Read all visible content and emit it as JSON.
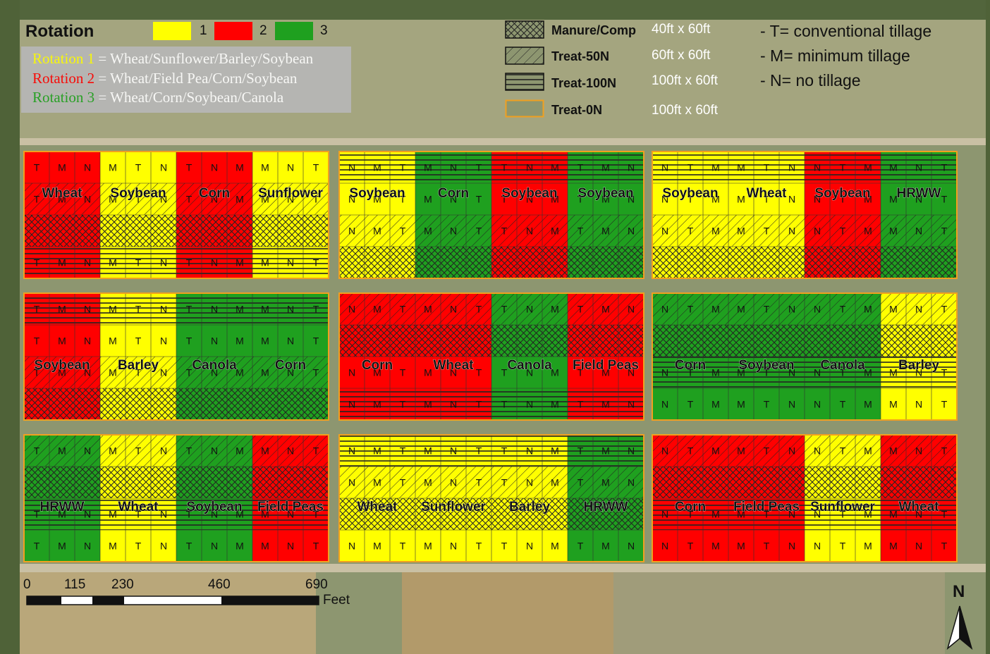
{
  "legend": {
    "title": "Rotation",
    "swatches": [
      {
        "label": "1",
        "color": "#ffff00"
      },
      {
        "label": "2",
        "color": "#ff0000"
      },
      {
        "label": "3",
        "color": "#1fa01f"
      }
    ],
    "rotations": [
      {
        "name": "Rotation 1",
        "crops": " = Wheat/Sunflower/Barley/Soybean",
        "color": "#ffff00"
      },
      {
        "name": "Rotation 2",
        "crops": " = Wheat/Field Pea/Corn/Soybean",
        "color": "#ff0000"
      },
      {
        "name": "Rotation 3",
        "crops": " = Wheat/Corn/Soybean/Canola",
        "color": "#1fa01f"
      }
    ]
  },
  "treatments": [
    {
      "label": "Manure/Comp",
      "size": "40ft x 60ft",
      "pattern": "crosshatch"
    },
    {
      "label": "Treat-50N",
      "size": "60ft x 60ft",
      "pattern": "diagonal"
    },
    {
      "label": "Treat-100N",
      "size": "100ft x 60ft",
      "pattern": "horizontal"
    },
    {
      "label": "Treat-0N",
      "size": "100ft x 60ft",
      "pattern": "none"
    }
  ],
  "tillage": [
    "- T= conventional tillage",
    "- M= minimum tillage",
    "- N= no tillage"
  ],
  "colors": {
    "1": "#ffff00",
    "2": "#ff0000",
    "3": "#1fa01f"
  },
  "blocks": [
    {
      "cols": [
        [
          "T",
          "M",
          "N"
        ],
        [
          "M",
          "T",
          "N"
        ],
        [
          "T",
          "N",
          "M"
        ],
        [
          "M",
          "N",
          "T"
        ]
      ],
      "col_rot": [
        "2",
        "1",
        "2",
        "1"
      ],
      "rows": [
        [
          "0"
        ],
        [
          "50",
          "MC"
        ],
        [
          "100"
        ]
      ],
      "crops": [
        "Wheat",
        "Soybean",
        "Corn",
        "Sunflower"
      ]
    },
    {
      "cols": [
        [
          "N",
          "M",
          "T"
        ],
        [
          "M",
          "N",
          "T"
        ],
        [
          "T",
          "N",
          "M"
        ],
        [
          "T",
          "M",
          "N"
        ]
      ],
      "col_rot": [
        "1",
        "3",
        "2",
        "3"
      ],
      "rows": [
        [
          "100"
        ],
        [
          "0"
        ],
        [
          "50",
          "MC"
        ]
      ],
      "crops": [
        "Soybean",
        "Corn",
        "Soybean",
        "Soybean"
      ]
    },
    {
      "cols": [
        [
          "N",
          "T",
          "M"
        ],
        [
          "M",
          "T",
          "N"
        ],
        [
          "N",
          "T",
          "M"
        ],
        [
          "M",
          "N",
          "T"
        ]
      ],
      "col_rot": [
        "1",
        "1",
        "2",
        "3"
      ],
      "rows": [
        [
          "100"
        ],
        [
          "0"
        ],
        [
          "50",
          "MC"
        ]
      ],
      "crops": [
        "Soybean",
        "Wheat",
        "Soybean",
        "HRWW"
      ]
    },
    {
      "cols": [
        [
          "T",
          "M",
          "N"
        ],
        [
          "M",
          "T",
          "N"
        ],
        [
          "T",
          "N",
          "M"
        ],
        [
          "M",
          "N",
          "T"
        ]
      ],
      "col_rot": [
        "2",
        "1",
        "3",
        "3"
      ],
      "rows": [
        [
          "100"
        ],
        [
          "0"
        ],
        [
          "50",
          "MC"
        ]
      ],
      "crops": [
        "Soybean",
        "Barley",
        "Canola",
        "Corn"
      ]
    },
    {
      "cols": [
        [
          "N",
          "M",
          "T"
        ],
        [
          "M",
          "N",
          "T"
        ],
        [
          "T",
          "N",
          "M"
        ],
        [
          "T",
          "M",
          "N"
        ]
      ],
      "col_rot": [
        "2",
        "2",
        "3",
        "2"
      ],
      "rows": [
        [
          "50",
          "MC"
        ],
        [
          "0"
        ],
        [
          "100"
        ]
      ],
      "crops": [
        "Corn",
        "Wheat",
        "Canola",
        "Field Peas"
      ]
    },
    {
      "cols": [
        [
          "N",
          "T",
          "M"
        ],
        [
          "M",
          "T",
          "N"
        ],
        [
          "N",
          "T",
          "M"
        ],
        [
          "M",
          "N",
          "T"
        ]
      ],
      "col_rot": [
        "3",
        "3",
        "3",
        "1"
      ],
      "rows": [
        [
          "50",
          "MC"
        ],
        [
          "100"
        ],
        [
          "0"
        ]
      ],
      "crops": [
        "Corn",
        "Soybean",
        "Canola",
        "Barley"
      ]
    },
    {
      "cols": [
        [
          "T",
          "M",
          "N"
        ],
        [
          "M",
          "T",
          "N"
        ],
        [
          "T",
          "N",
          "M"
        ],
        [
          "M",
          "N",
          "T"
        ]
      ],
      "col_rot": [
        "3",
        "1",
        "3",
        "2"
      ],
      "rows": [
        [
          "50",
          "MC"
        ],
        [
          "100"
        ],
        [
          "0"
        ]
      ],
      "crops": [
        "HRWW",
        "Wheat",
        "Soybean",
        "Field Peas"
      ]
    },
    {
      "cols": [
        [
          "N",
          "M",
          "T"
        ],
        [
          "M",
          "N",
          "T"
        ],
        [
          "T",
          "N",
          "M"
        ],
        [
          "T",
          "M",
          "N"
        ]
      ],
      "col_rot": [
        "1",
        "1",
        "1",
        "3"
      ],
      "rows": [
        [
          "100"
        ],
        [
          "50",
          "MC"
        ],
        [
          "0"
        ]
      ],
      "crops": [
        "Wheat",
        "Sunflower",
        "Barley",
        "HRWW"
      ]
    },
    {
      "cols": [
        [
          "N",
          "T",
          "M"
        ],
        [
          "M",
          "T",
          "N"
        ],
        [
          "N",
          "T",
          "M"
        ],
        [
          "M",
          "N",
          "T"
        ]
      ],
      "col_rot": [
        "2",
        "2",
        "1",
        "2"
      ],
      "rows": [
        [
          "50",
          "MC"
        ],
        [
          "100"
        ],
        [
          "0"
        ]
      ],
      "crops": [
        "Corn",
        "Field Peas",
        "Sunflower",
        "Wheat"
      ]
    }
  ],
  "scale_bar": {
    "ticks": [
      "0",
      "115",
      "230",
      "460",
      "690"
    ],
    "unit": "Feet"
  },
  "north_label": "N"
}
